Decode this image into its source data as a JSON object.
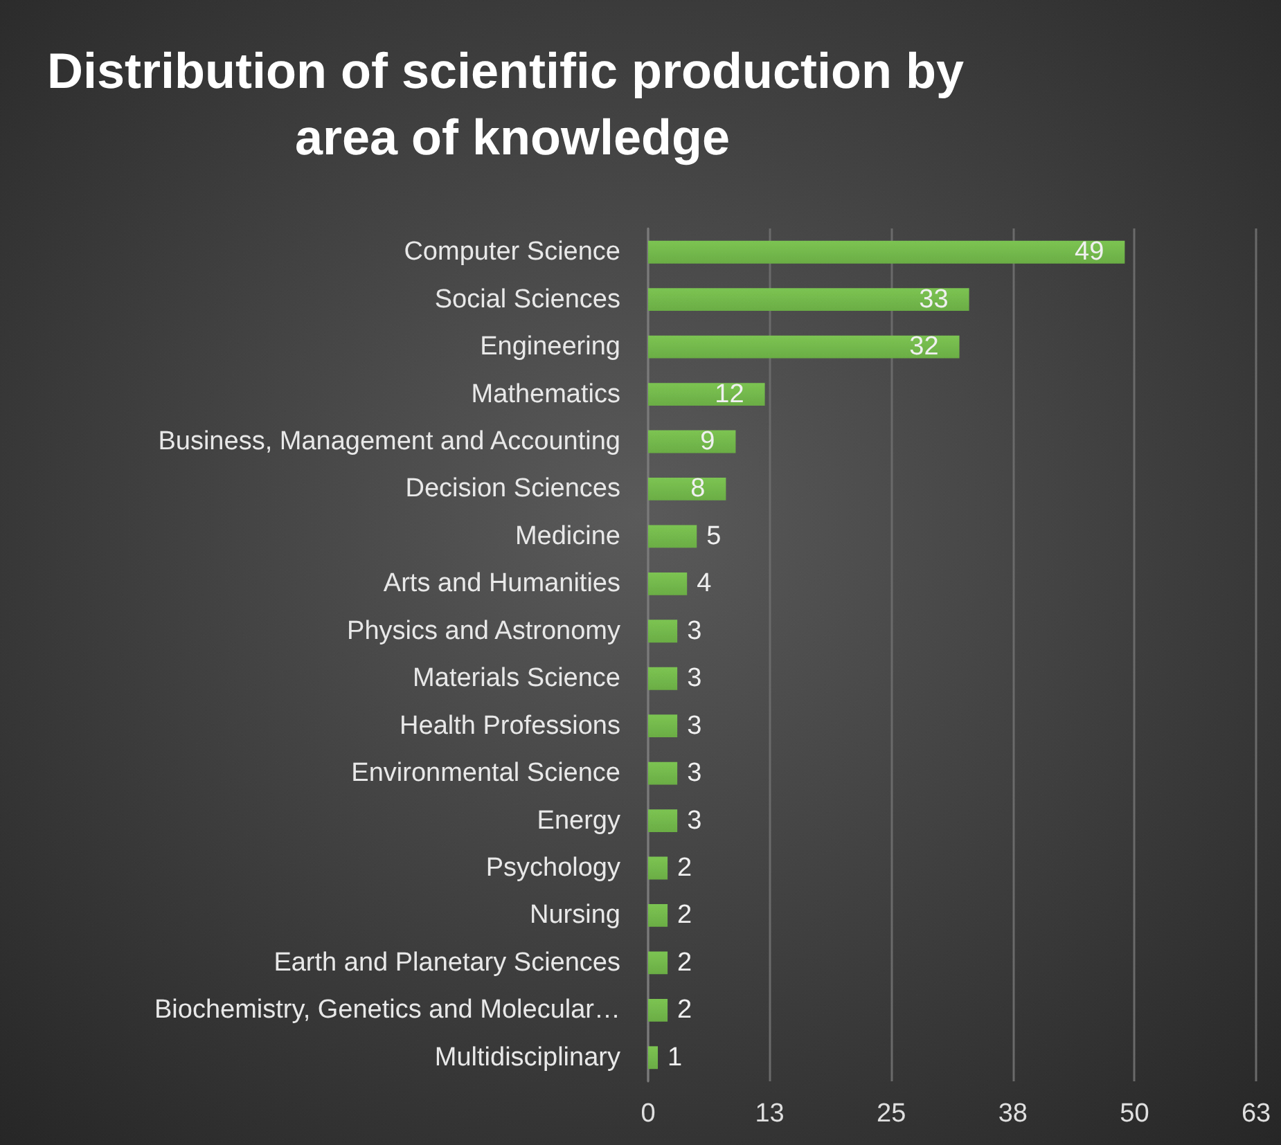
{
  "chart_data": {
    "type": "bar",
    "orientation": "horizontal",
    "title": "Distribution of scientific production by area of knowledge",
    "categories": [
      "Computer Science",
      "Social Sciences",
      "Engineering",
      "Mathematics",
      "Business, Management and Accounting",
      "Decision Sciences",
      "Medicine",
      "Arts and Humanities",
      "Physics and Astronomy",
      "Materials Science",
      "Health Professions",
      "Environmental Science",
      "Energy",
      "Psychology",
      "Nursing",
      "Earth and Planetary Sciences",
      "Biochemistry, Genetics and Molecular…",
      "Multidisciplinary"
    ],
    "values": [
      49,
      33,
      32,
      12,
      9,
      8,
      5,
      4,
      3,
      3,
      3,
      3,
      3,
      2,
      2,
      2,
      2,
      1
    ],
    "color": "#6aad45",
    "xlim": [
      0,
      62.5
    ],
    "xticks": [
      0,
      {
        "value": 12.5,
        "label": "13"
      },
      25,
      {
        "value": 37.5,
        "label": "38"
      },
      50,
      {
        "value": 62.5,
        "label": "63"
      }
    ],
    "grid": "x",
    "data_labels": true
  }
}
